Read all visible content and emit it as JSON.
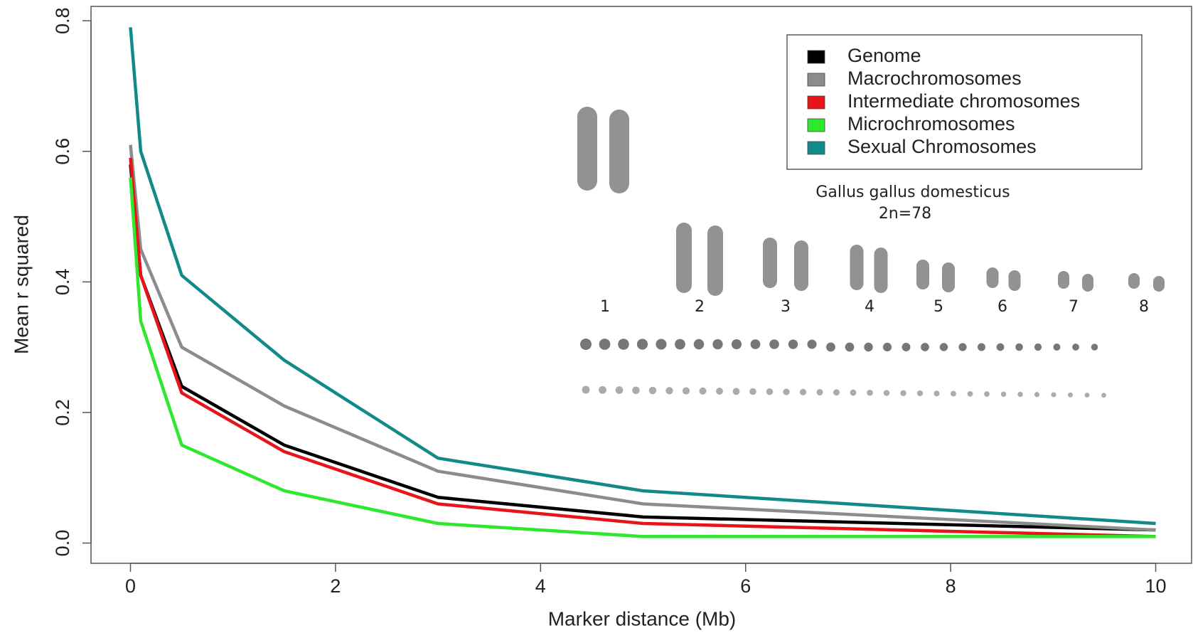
{
  "chart_data": {
    "type": "line",
    "x_label": "Marker distance (Mb)",
    "y_label": "Mean r squared",
    "x": [
      0,
      0.1,
      0.5,
      1.5,
      3,
      5,
      10
    ],
    "series": [
      {
        "name": "Genome",
        "color": "#000000",
        "values": [
          0.58,
          0.41,
          0.24,
          0.15,
          0.07,
          0.04,
          0.02
        ]
      },
      {
        "name": "Macrochromosomes",
        "color": "#8c8c8c",
        "values": [
          0.61,
          0.45,
          0.3,
          0.21,
          0.11,
          0.06,
          0.02
        ]
      },
      {
        "name": "Intermediate chromosomes",
        "color": "#e8141b",
        "values": [
          0.59,
          0.41,
          0.23,
          0.14,
          0.06,
          0.03,
          0.01
        ]
      },
      {
        "name": "Microchromosomes",
        "color": "#2ee82e",
        "values": [
          0.56,
          0.34,
          0.15,
          0.08,
          0.03,
          0.01,
          0.01
        ]
      },
      {
        "name": "Sexual Chromosomes",
        "color": "#138a8a",
        "values": [
          0.79,
          0.6,
          0.41,
          0.28,
          0.13,
          0.08,
          0.03
        ]
      }
    ],
    "xlim": [
      -0.385,
      10.35
    ],
    "ylim": [
      -0.031,
      0.822
    ],
    "xticks": [
      0,
      2,
      4,
      6,
      8,
      10
    ],
    "yticks": [
      {
        "value": 0,
        "label": "0.0"
      },
      0.2,
      0.4,
      0.6,
      0.8
    ],
    "legend_position": "upper right",
    "annotations": [
      "Gallus gallus domesticus",
      "2n=78"
    ],
    "karyotype_labels": [
      "1",
      "2",
      "3",
      "4",
      "5",
      "6",
      "7",
      "8"
    ]
  }
}
